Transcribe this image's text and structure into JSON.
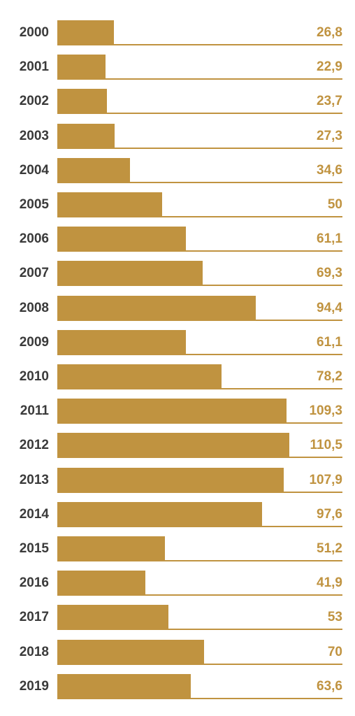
{
  "colors": {
    "bar": "#c09340",
    "year_text": "#3a3a3a",
    "value_text": "#c09340"
  },
  "chart_data": {
    "type": "bar",
    "orientation": "horizontal",
    "categories": [
      "2000",
      "2001",
      "2002",
      "2003",
      "2004",
      "2005",
      "2006",
      "2007",
      "2008",
      "2009",
      "2010",
      "2011",
      "2012",
      "2013",
      "2014",
      "2015",
      "2016",
      "2017",
      "2018",
      "2019"
    ],
    "values": [
      26.8,
      22.9,
      23.7,
      27.3,
      34.6,
      50,
      61.1,
      69.3,
      94.4,
      61.1,
      78.2,
      109.3,
      110.5,
      107.9,
      97.6,
      51.2,
      41.9,
      53,
      70,
      63.6
    ],
    "value_labels": [
      "26,8",
      "22,9",
      "23,7",
      "27,3",
      "34,6",
      "50",
      "61,1",
      "69,3",
      "94,4",
      "61,1",
      "78,2",
      "109,3",
      "110,5",
      "107,9",
      "97,6",
      "51,2",
      "41,9",
      "53",
      "70",
      "63,6"
    ],
    "grid": false,
    "legend": "none"
  }
}
